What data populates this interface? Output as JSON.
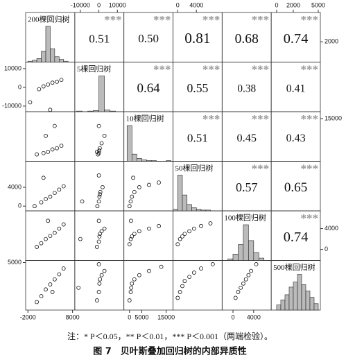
{
  "chart_data": {
    "type": "scatter-matrix",
    "variables": [
      {
        "name": "200棵回归树",
        "lim": [
          -2500,
          8500
        ],
        "xticks": [
          -2000,
          8000
        ],
        "yticks": [
          2000
        ]
      },
      {
        "name": "5棵回归树",
        "lim": [
          -13000,
          13500
        ],
        "xticks": [
          -10000,
          0,
          10000
        ],
        "yticks": [
          -10000,
          0,
          10000
        ]
      },
      {
        "name": "10棵回归树",
        "lim": [
          -2300,
          17800
        ],
        "xticks": [
          0,
          5000,
          15000
        ],
        "yticks": [
          15000
        ]
      },
      {
        "name": "50棵回归树",
        "lim": [
          -1000,
          9500
        ],
        "xticks": [
          0,
          4000
        ],
        "yticks": [
          0,
          4000
        ]
      },
      {
        "name": "100棵回归树",
        "lim": [
          -2100,
          7400
        ],
        "xticks": [
          0,
          4000
        ],
        "yticks": [
          0,
          4000
        ]
      },
      {
        "name": "500棵回归树",
        "lim": [
          -650,
          5250
        ],
        "xticks": [
          0,
          2000,
          5000
        ],
        "yticks": [
          5000
        ]
      }
    ],
    "correlations": {
      "values": [
        0.51,
        0.5,
        0.81,
        0.68,
        0.74,
        0.64,
        0.55,
        0.38,
        0.41,
        0.51,
        0.45,
        0.43,
        0.57,
        0.65,
        0.74
      ],
      "value_labels": [
        "0.51",
        "0.50",
        "0.81",
        "0.68",
        "0.74",
        "0.64",
        "0.55",
        "0.38",
        "0.41",
        "0.51",
        "0.45",
        "0.43",
        "0.57",
        "0.65",
        "0.74"
      ],
      "significance": [
        "***",
        "***",
        "***",
        "***",
        "***",
        "***",
        "***",
        "***",
        "***",
        "***",
        "***",
        "***",
        "***",
        "***",
        "***"
      ]
    },
    "histograms": [
      {
        "bins": [
          -2000,
          -1000,
          0,
          1000,
          2000,
          3000,
          4000,
          5000,
          6000,
          7000
        ],
        "counts": [
          1,
          2,
          4,
          12,
          40,
          15,
          6,
          3,
          1
        ]
      },
      {
        "bins": [
          -12000,
          -9000,
          -6000,
          -3000,
          0,
          3000,
          6000,
          9000,
          12000
        ],
        "counts": [
          1,
          0,
          1,
          2,
          60,
          3,
          1,
          0
        ]
      },
      {
        "bins": [
          -1000,
          1000,
          3000,
          5000,
          7000,
          9000,
          11000,
          13000,
          15000,
          17000
        ],
        "counts": [
          50,
          10,
          4,
          2,
          1,
          1,
          0,
          0,
          1
        ]
      },
      {
        "bins": [
          -1000,
          0,
          1000,
          2000,
          3000,
          4000,
          5000,
          6000,
          7000
        ],
        "counts": [
          2,
          45,
          20,
          8,
          4,
          2,
          1,
          1
        ]
      },
      {
        "bins": [
          -1000,
          0,
          1000,
          2000,
          3000,
          4000,
          5000,
          6000
        ],
        "counts": [
          2,
          8,
          20,
          45,
          25,
          10,
          3
        ]
      },
      {
        "bins": [
          0,
          500,
          1000,
          1500,
          2000,
          2500,
          3000,
          3500,
          4000,
          4500,
          5000
        ],
        "counts": [
          4,
          8,
          12,
          18,
          22,
          28,
          20,
          15,
          10,
          5
        ]
      }
    ],
    "pairs": [
      {
        "x": [
          500,
          1500,
          2500,
          3500,
          4500,
          5500,
          -1500,
          3000
        ],
        "y": [
          -1000,
          500,
          1500,
          2500,
          3000,
          4000,
          -8000,
          -12000
        ]
      },
      {
        "x": [
          0,
          1500,
          2500,
          3500,
          4500,
          5500,
          2000,
          4000
        ],
        "y": [
          500,
          1000,
          1500,
          2500,
          3000,
          4000,
          8000,
          12000
        ]
      },
      {
        "x": [
          -500,
          0,
          200,
          500,
          1500,
          3000,
          -1000,
          0
        ],
        "y": [
          500,
          1000,
          2000,
          3000,
          5000,
          8000,
          1500,
          12000
        ]
      },
      {
        "x": [
          -500,
          1000,
          2000,
          3000,
          4000,
          5000,
          6000,
          1500
        ],
        "y": [
          0,
          800,
          1500,
          2000,
          2800,
          3500,
          4200,
          6000
        ]
      },
      {
        "x": [
          -800,
          0,
          300,
          800,
          2000,
          -9000,
          0,
          500
        ],
        "y": [
          0,
          1000,
          2000,
          3000,
          4000,
          1000,
          6500,
          2500
        ]
      },
      {
        "x": [
          0,
          500,
          1000,
          2000,
          4000,
          8000,
          12000,
          1500
        ],
        "y": [
          0,
          1000,
          2000,
          3000,
          4000,
          4500,
          5000,
          6000
        ]
      },
      {
        "x": [
          0,
          1000,
          2000,
          3000,
          4000,
          5000,
          6000,
          2500
        ],
        "y": [
          500,
          1200,
          2000,
          2600,
          3200,
          4000,
          4800,
          5500
        ]
      },
      {
        "x": [
          -1000,
          0,
          300,
          600,
          1500,
          3000,
          -10000,
          0
        ],
        "y": [
          500,
          1500,
          2500,
          3000,
          3500,
          4000,
          2000,
          5500
        ]
      },
      {
        "x": [
          0,
          500,
          1000,
          2000,
          4000,
          8000,
          12000,
          600
        ],
        "y": [
          1000,
          2000,
          2500,
          3000,
          3500,
          4000,
          4500,
          5500
        ]
      },
      {
        "x": [
          0,
          500,
          1000,
          1500,
          2500,
          3500,
          5000,
          7000
        ],
        "y": [
          1000,
          2000,
          2500,
          3000,
          3500,
          4000,
          4500,
          5000
        ]
      },
      {
        "x": [
          0,
          1000,
          2000,
          3000,
          4000,
          5000,
          6000,
          3500
        ],
        "y": [
          300,
          1000,
          1800,
          2400,
          3000,
          3600,
          4300,
          1500
        ]
      },
      {
        "x": [
          -1000,
          0,
          300,
          600,
          1500,
          3000,
          -11000,
          0
        ],
        "y": [
          500,
          1500,
          2500,
          3000,
          3500,
          4000,
          2000,
          4800
        ]
      },
      {
        "x": [
          0,
          500,
          1000,
          2000,
          4000,
          8000,
          13000,
          700
        ],
        "y": [
          500,
          1500,
          2500,
          3000,
          3500,
          4000,
          4500,
          2000
        ]
      },
      {
        "x": [
          0,
          500,
          1000,
          1500,
          2500,
          3500,
          5000,
          7500
        ],
        "y": [
          800,
          1500,
          2200,
          2800,
          3300,
          3800,
          4300,
          4800
        ]
      },
      {
        "x": [
          500,
          1000,
          1500,
          2000,
          2500,
          3000,
          3500,
          4500
        ],
        "y": [
          800,
          1500,
          2000,
          2500,
          3000,
          3500,
          4000,
          4800
        ]
      }
    ],
    "note": "注：* P＜0.05，** P＜0.01，*** P＜0.001（两端检验）。",
    "figure_label": "图 7　贝叶斯叠加回归树的内部异质性"
  }
}
